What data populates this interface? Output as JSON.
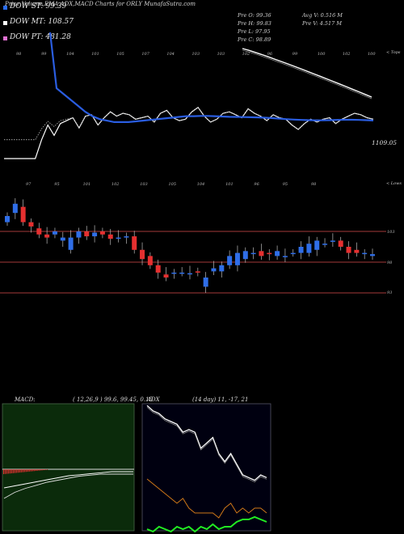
{
  "title": "Price,Volume,EMA,ADX,MACD Charts for ORLY MunafaSutra.com",
  "legend": [
    {
      "label": "DOW ST: 99.39",
      "color": "#2b6df0"
    },
    {
      "label": "DOW MT: 108.57",
      "color": "#ffffff"
    },
    {
      "label": "DOW PT: 481.28",
      "color": "#e070d0"
    }
  ],
  "stats_left": [
    "Pre   O: 99.36",
    "Pre   H: 99.83",
    "Pre   L: 97.95",
    "Pre   C: 98.89"
  ],
  "stats_right": [
    "Avg V: 0.516  M",
    "Pre   V: 4.517 M"
  ],
  "ema_panel": {
    "corner_label": "< Tops",
    "price_label": "1109.05",
    "top_labels": [
      "98",
      "99",
      "104",
      "101",
      "105",
      "107",
      "104",
      "103",
      "103",
      "102",
      "96",
      "99",
      "100",
      "102",
      "100"
    ]
  },
  "candle_panel": {
    "corner_label": "< Lows",
    "low_labels": [
      "97",
      "95",
      "101",
      "102",
      "103",
      "105",
      "104",
      "101",
      "96",
      "95",
      "98"
    ],
    "levels": [
      "103",
      "98",
      "93"
    ]
  },
  "macd_panel": {
    "label": "MACD:",
    "params": "( 12,26,9 ) 99.6,  99.45,  0.15"
  },
  "adx_panel": {
    "label": "ADX",
    "params": "(14  day) 11,  -17,  21"
  },
  "colors": {
    "up": "#2f6ee8",
    "down": "#e53030",
    "ema_blue": "#2a5de0",
    "level_line": "#a43a3a",
    "macd_bg": "#0b2b0b",
    "adx_bg": "#000010",
    "adx_orange": "#d07818",
    "adx_green": "#22ee22"
  },
  "chart_data": [
    {
      "type": "line",
      "title": "EMA panel",
      "series": [
        {
          "name": "",
          "values": [
            25,
            30,
            32,
            55,
            70,
            60,
            85,
            95,
            88,
            96,
            98,
            100,
            93,
            101,
            102,
            95,
            100,
            104,
            101,
            103,
            102,
            99,
            100,
            101,
            97,
            103,
            105,
            100,
            98,
            99,
            104,
            107,
            101,
            97,
            99,
            103,
            104,
            102,
            100,
            106,
            103,
            101,
            98,
            102,
            100,
            99,
            95,
            92,
            96,
            99,
            97,
            99,
            100,
            96,
            99,
            101,
            103,
            102,
            100,
            99
          ]
        },
        {
          "name": "",
          "values": [
            120,
            116,
            112,
            108,
            104,
            101,
            99,
            98,
            97,
            97,
            97,
            97.5,
            98,
            98.5,
            99,
            99.5,
            100,
            100.5,
            101,
            101,
            101.2,
            101.2,
            101,
            100.8,
            100.6,
            100.5,
            100.4,
            100.3,
            100.2,
            100,
            99.7,
            99.3,
            99,
            98.7,
            98.5,
            98.3,
            98.2,
            98.2,
            98.3,
            98.5,
            98.6,
            98.6,
            98.5,
            98.3,
            98.1
          ]
        }
      ]
    },
    {
      "type": "bar",
      "title": "Daily candles",
      "series": [
        {
          "name": "open",
          "values": [
            104.5,
            106.0,
            107.0,
            104.5,
            103.5,
            102.5,
            102.5,
            101.5,
            100.0,
            102.0,
            103.0,
            102.2,
            103.0,
            102.5,
            101.8,
            102.0,
            102.2,
            100.0,
            99.0,
            97.5,
            96.0,
            96.3,
            96.3,
            96.2,
            96.5,
            94.0,
            96.5,
            96.5,
            97.5,
            97.5,
            98.5,
            99.5,
            99.8,
            99.5,
            99.0,
            99.0,
            99.5,
            99.5,
            99.5,
            100.0,
            101.0,
            101.5,
            101.5,
            100.5,
            100.0,
            99.5,
            99.0
          ]
        },
        {
          "name": "close",
          "values": [
            105.5,
            107.5,
            104.5,
            103.8,
            102.5,
            102.0,
            103.0,
            102.0,
            102.0,
            103.0,
            102.2,
            102.8,
            102.5,
            101.8,
            102.0,
            102.2,
            100.0,
            98.5,
            97.5,
            96.3,
            95.5,
            96.3,
            96.3,
            96.2,
            96.3,
            95.5,
            97.0,
            97.5,
            99.0,
            99.5,
            99.8,
            99.5,
            99.0,
            99.3,
            99.8,
            99.0,
            99.5,
            100.5,
            101.0,
            101.5,
            101.0,
            101.5,
            100.5,
            99.5,
            99.5,
            99.5,
            99.3
          ]
        }
      ],
      "levels": [
        103,
        98,
        93
      ]
    },
    {
      "type": "line",
      "title": "MACD",
      "series": [
        {
          "name": "",
          "values": [
            -0.8,
            -0.7,
            -0.6,
            -0.5,
            -0.4,
            -0.3,
            -0.2,
            -0.15,
            -0.1,
            -0.05,
            0,
            0,
            0
          ]
        },
        {
          "name": "",
          "values": [
            -1.2,
            -0.9,
            -0.7,
            -0.55,
            -0.4,
            -0.3,
            -0.2,
            -0.1,
            -0.05,
            0,
            0,
            0,
            0
          ]
        }
      ]
    },
    {
      "type": "line",
      "title": "ADX",
      "series": [
        {
          "name": "",
          "values": [
            36,
            34,
            33,
            31,
            30,
            29,
            26,
            27,
            26,
            20,
            22,
            24,
            18,
            15,
            18,
            14,
            10,
            9,
            8,
            10,
            9
          ]
        },
        {
          "name": "",
          "values": [
            8,
            7,
            6,
            5,
            4,
            3,
            4,
            2,
            1,
            1,
            1,
            1,
            0,
            2,
            3,
            1,
            2,
            1,
            2,
            2,
            1
          ]
        },
        {
          "name": "",
          "values": [
            -2,
            -3,
            -1,
            -2,
            -3,
            -1,
            -2,
            -1,
            -3,
            -1,
            -2,
            0,
            -2,
            -1,
            -1,
            1,
            2,
            2,
            3,
            2,
            1
          ]
        }
      ]
    }
  ]
}
